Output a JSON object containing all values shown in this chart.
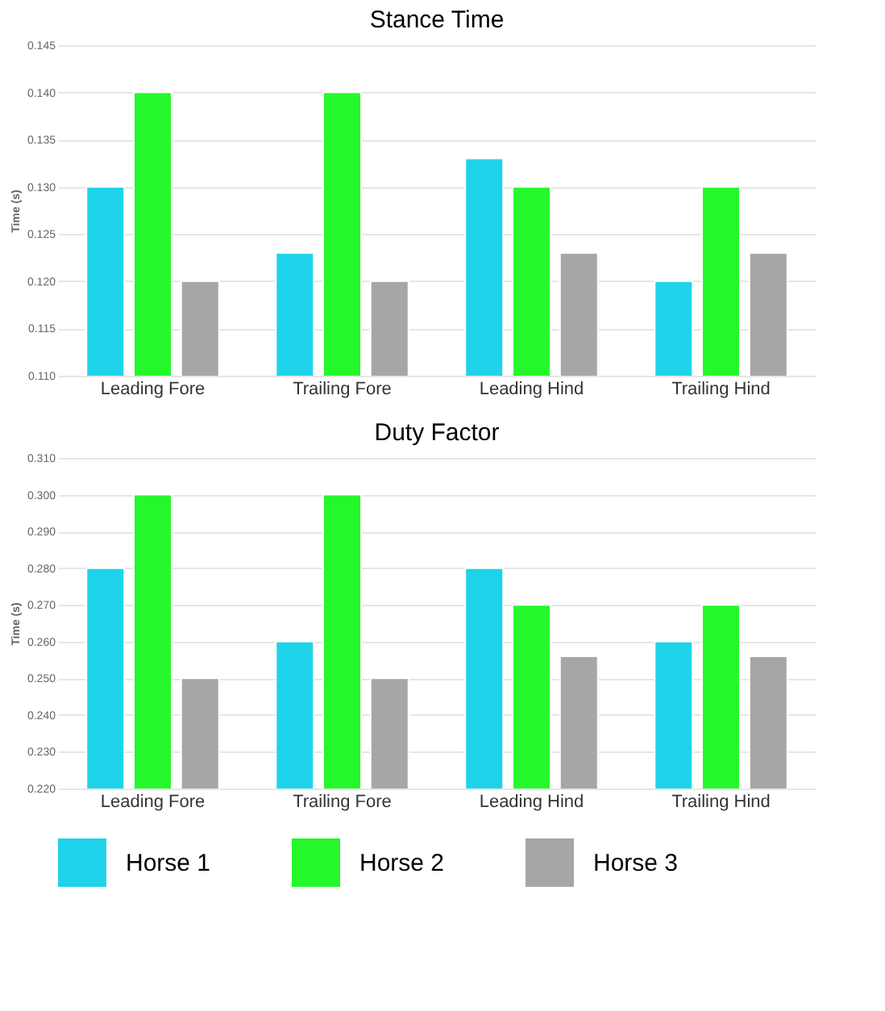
{
  "chart_data": [
    {
      "type": "bar",
      "title": "Stance Time",
      "ylabel": "Time (s)",
      "categories": [
        "Leading Fore",
        "Trailing Fore",
        "Leading Hind",
        "Trailing Hind"
      ],
      "series": [
        {
          "name": "Horse 1",
          "color": "#1fd3ea",
          "values": [
            0.13,
            0.123,
            0.133,
            0.12
          ]
        },
        {
          "name": "Horse 2",
          "color": "#24f82a",
          "values": [
            0.14,
            0.14,
            0.13,
            0.13
          ]
        },
        {
          "name": "Horse 3",
          "color": "#a6a6a6",
          "values": [
            0.12,
            0.12,
            0.123,
            0.123
          ]
        }
      ],
      "ylim": [
        0.11,
        0.145
      ],
      "yticks": [
        {
          "value": 0.11,
          "label": "0.110"
        },
        {
          "value": 0.115,
          "label": "0.115"
        },
        {
          "value": 0.12,
          "label": "0.120"
        },
        {
          "value": 0.125,
          "label": "0.125"
        },
        {
          "value": 0.13,
          "label": "0.130"
        },
        {
          "value": 0.135,
          "label": "0.135"
        },
        {
          "value": 0.14,
          "label": "0.140"
        },
        {
          "value": 0.145,
          "label": "0.145"
        }
      ],
      "grid": "y",
      "legend": "bottom"
    },
    {
      "type": "bar",
      "title": "Duty Factor",
      "ylabel": "Time (s)",
      "categories": [
        "Leading Fore",
        "Trailing Fore",
        "Leading Hind",
        "Trailing Hind"
      ],
      "series": [
        {
          "name": "Horse 1",
          "color": "#1fd3ea",
          "values": [
            0.28,
            0.26,
            0.28,
            0.26
          ]
        },
        {
          "name": "Horse 2",
          "color": "#24f82a",
          "values": [
            0.3,
            0.3,
            0.27,
            0.27
          ]
        },
        {
          "name": "Horse 3",
          "color": "#a6a6a6",
          "values": [
            0.25,
            0.25,
            0.256,
            0.256
          ]
        }
      ],
      "ylim": [
        0.22,
        0.31
      ],
      "yticks": [
        {
          "value": 0.22,
          "label": "0.220"
        },
        {
          "value": 0.23,
          "label": "0.230"
        },
        {
          "value": 0.24,
          "label": "0.240"
        },
        {
          "value": 0.25,
          "label": "0.250"
        },
        {
          "value": 0.26,
          "label": "0.260"
        },
        {
          "value": 0.27,
          "label": "0.270"
        },
        {
          "value": 0.28,
          "label": "0.280"
        },
        {
          "value": 0.29,
          "label": "0.290"
        },
        {
          "value": 0.3,
          "label": "0.300"
        },
        {
          "value": 0.31,
          "label": "0.310"
        }
      ],
      "grid": "y",
      "legend": "bottom"
    }
  ]
}
